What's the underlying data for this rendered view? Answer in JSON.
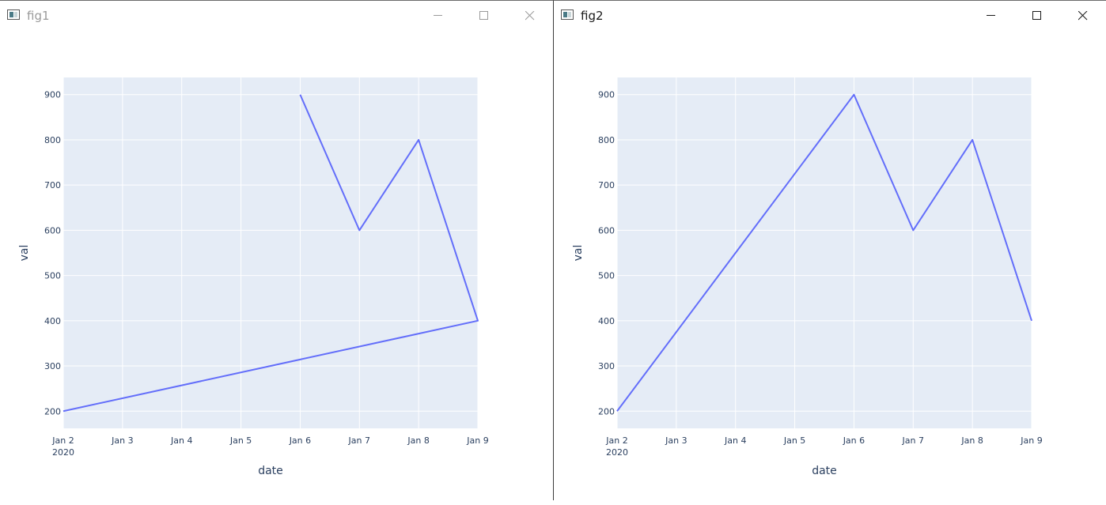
{
  "windows": [
    {
      "title": "fig1",
      "active": false,
      "controls": {
        "minimize": "minimize-icon",
        "maximize": "maximize-icon",
        "close": "close-icon"
      }
    },
    {
      "title": "fig2",
      "active": true,
      "controls": {
        "minimize": "minimize-icon",
        "maximize": "maximize-icon",
        "close": "close-icon"
      }
    }
  ],
  "chart_data": [
    {
      "type": "line",
      "xlabel": "date",
      "ylabel": "val",
      "x_tick_labels": [
        "Jan 2",
        "Jan 3",
        "Jan 4",
        "Jan 5",
        "Jan 6",
        "Jan 7",
        "Jan 8",
        "Jan 9"
      ],
      "x_tick_year": "2020",
      "y_ticks": [
        200,
        300,
        400,
        500,
        600,
        700,
        800,
        900
      ],
      "xlim": [
        "2020-01-02",
        "2020-01-09"
      ],
      "ylim": [
        162,
        938
      ],
      "grid": true,
      "colors": {
        "line": "#636efa",
        "plot_bg": "#e5ecf6",
        "grid": "#ffffff",
        "text": "#2a3f5f"
      },
      "series": [
        {
          "x": [
            "2020-01-06",
            "2020-01-07",
            "2020-01-08",
            "2020-01-09",
            "2020-01-02"
          ],
          "y": [
            900,
            600,
            800,
            400,
            200
          ]
        }
      ]
    },
    {
      "type": "line",
      "xlabel": "date",
      "ylabel": "val",
      "x_tick_labels": [
        "Jan 2",
        "Jan 3",
        "Jan 4",
        "Jan 5",
        "Jan 6",
        "Jan 7",
        "Jan 8",
        "Jan 9"
      ],
      "x_tick_year": "2020",
      "y_ticks": [
        200,
        300,
        400,
        500,
        600,
        700,
        800,
        900
      ],
      "xlim": [
        "2020-01-02",
        "2020-01-09"
      ],
      "ylim": [
        162,
        938
      ],
      "grid": true,
      "colors": {
        "line": "#636efa",
        "plot_bg": "#e5ecf6",
        "grid": "#ffffff",
        "text": "#2a3f5f"
      },
      "series": [
        {
          "x": [
            "2020-01-02",
            "2020-01-06",
            "2020-01-07",
            "2020-01-08",
            "2020-01-09"
          ],
          "y": [
            200,
            900,
            600,
            800,
            400
          ]
        }
      ]
    }
  ]
}
